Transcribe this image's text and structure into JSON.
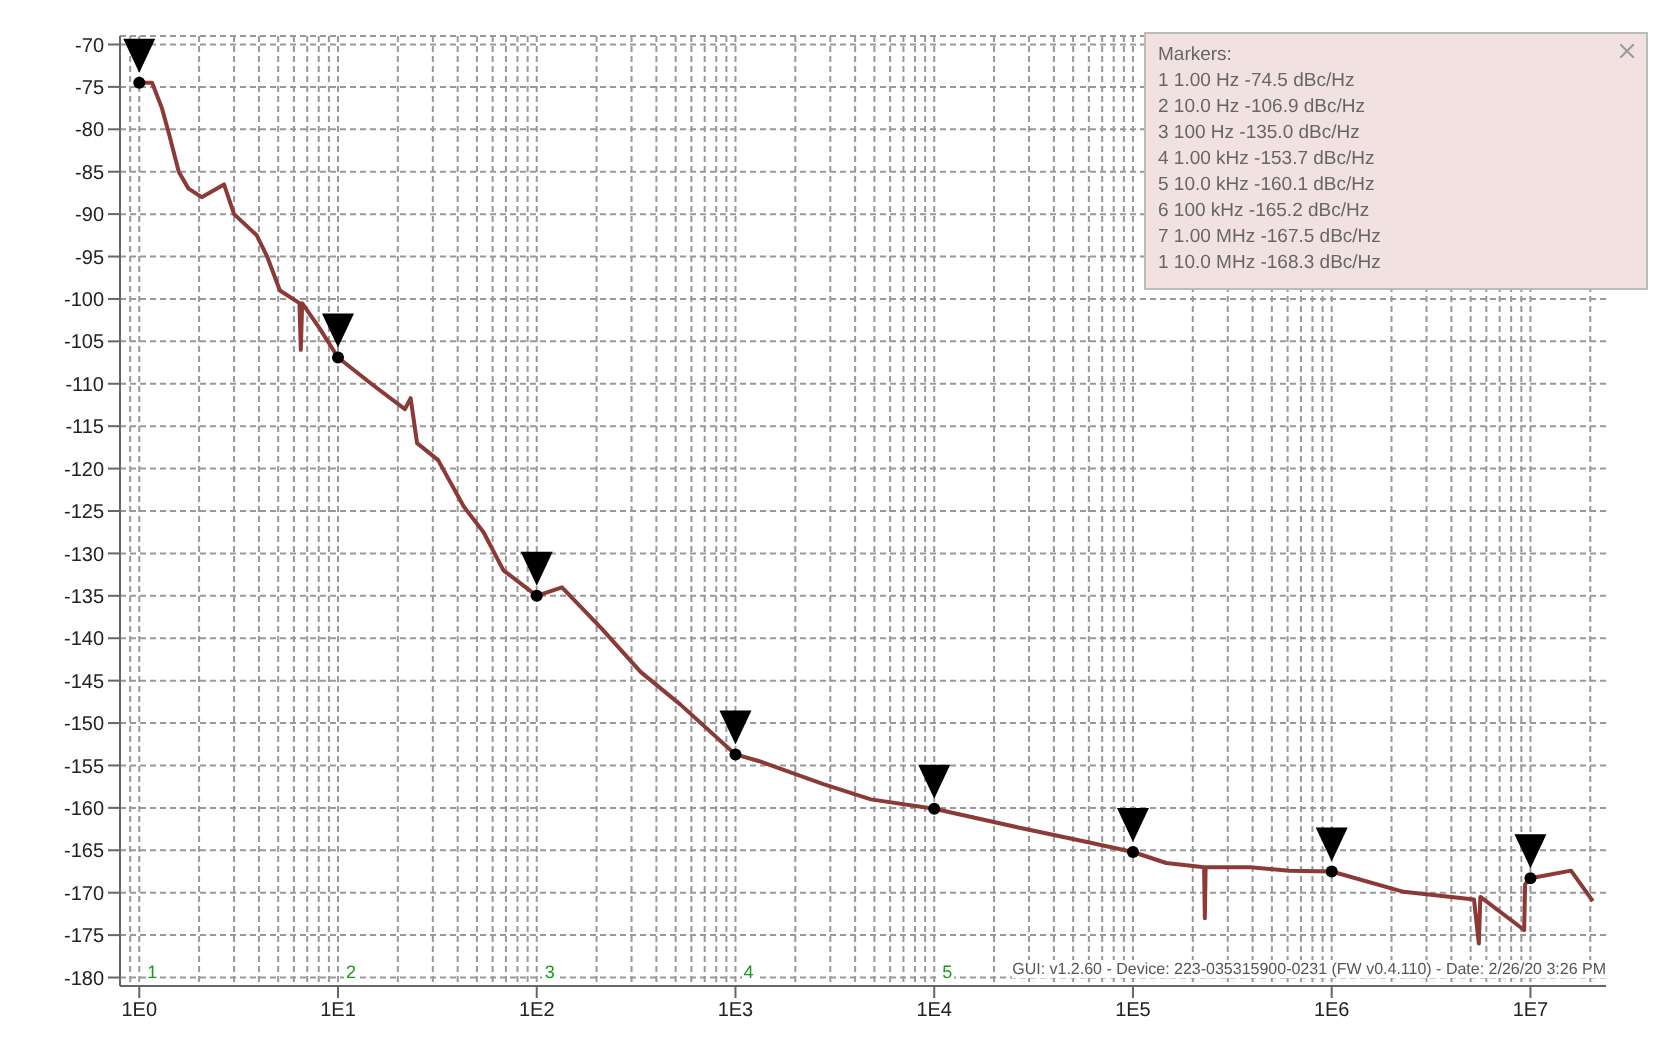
{
  "chart_data": {
    "type": "line",
    "log": "x",
    "grid": true,
    "legend": false,
    "xlim": [
      0.8,
      24000000
    ],
    "xticks": [
      {
        "value": 1,
        "label": "1E0"
      },
      {
        "value": 10,
        "label": "1E1"
      },
      {
        "value": 100,
        "label": "1E2"
      },
      {
        "value": 1000,
        "label": "1E3"
      },
      {
        "value": 10000,
        "label": "1E4"
      },
      {
        "value": 100000,
        "label": "1E5"
      },
      {
        "value": 1000000,
        "label": "1E6"
      },
      {
        "value": 10000000,
        "label": "1E7"
      }
    ],
    "ylim": [
      -181,
      -69
    ],
    "yticks": [
      -70,
      -75,
      -80,
      -85,
      -90,
      -95,
      -100,
      -105,
      -110,
      -115,
      -120,
      -125,
      -130,
      -135,
      -140,
      -145,
      -150,
      -155,
      -160,
      -165,
      -170,
      -175,
      -180
    ],
    "series": [
      {
        "color": "#8b3a36",
        "marker": "none",
        "line_style": "solid",
        "x": [
          1,
          1.16,
          1.3,
          1.41,
          1.58,
          1.77,
          2.06,
          2.67,
          3,
          3.9,
          4.4,
          5.1,
          6.4,
          6.5,
          6.6,
          8.1,
          10,
          14.7,
          21.7,
          23.2,
          25,
          31.9,
          43,
          54,
          68,
          100,
          134,
          211,
          334,
          527,
          1000,
          1318,
          2770,
          4800,
          10000,
          27600,
          58000,
          100000,
          147000,
          228000,
          230000,
          232000,
          390000,
          610000,
          1000000,
          2300000,
          5200000,
          5500000,
          5600000,
          9300000,
          9400000,
          10000000,
          16000000,
          20600000
        ],
        "values": [
          -74.5,
          -74.5,
          -77.5,
          -80.5,
          -85,
          -87,
          -88,
          -86.5,
          -90,
          -92.5,
          -95,
          -99,
          -100.5,
          -106,
          -100.5,
          -103.5,
          -106.9,
          -110,
          -113,
          -111.7,
          -117,
          -119,
          -124.5,
          -127.5,
          -132,
          -135,
          -134,
          -138.8,
          -144,
          -147.8,
          -153.7,
          -154.5,
          -157.2,
          -159,
          -160.1,
          -162.4,
          -164,
          -165.2,
          -166.5,
          -167,
          -173,
          -167,
          -167,
          -167.4,
          -167.5,
          -169.9,
          -170.8,
          -176,
          -170.5,
          -174.4,
          -169,
          -168.3,
          -167.4,
          -171
        ]
      },
      {
        "type": "scatter",
        "color": "#000000",
        "marker": "circle",
        "x": [
          1,
          10,
          100,
          1000,
          10000,
          100000,
          1000000,
          10000000
        ],
        "values": [
          -74.5,
          -106.9,
          -135.0,
          -153.7,
          -160.1,
          -165.2,
          -167.5,
          -168.3
        ]
      }
    ],
    "annotations": [
      "Markers:",
      "1 1.00 Hz -74.5 dBc/Hz",
      "2 10.0 Hz -106.9 dBc/Hz",
      "3 100 Hz -135.0 dBc/Hz",
      "4 1.00 kHz -153.7 dBc/Hz",
      "5 10.0 kHz -160.1 dBc/Hz",
      "6 100 kHz -165.2 dBc/Hz",
      "7 1.00 MHz -167.5 dBc/Hz",
      "1 10.0 MHz -168.3 dBc/Hz",
      "GUI: v1.2.60 - Device: 223-035315900-0231 (FW v0.4.110) - Date: 2/26/20 3:26 PM",
      "1",
      "2",
      "3",
      "4",
      "5"
    ]
  }
}
